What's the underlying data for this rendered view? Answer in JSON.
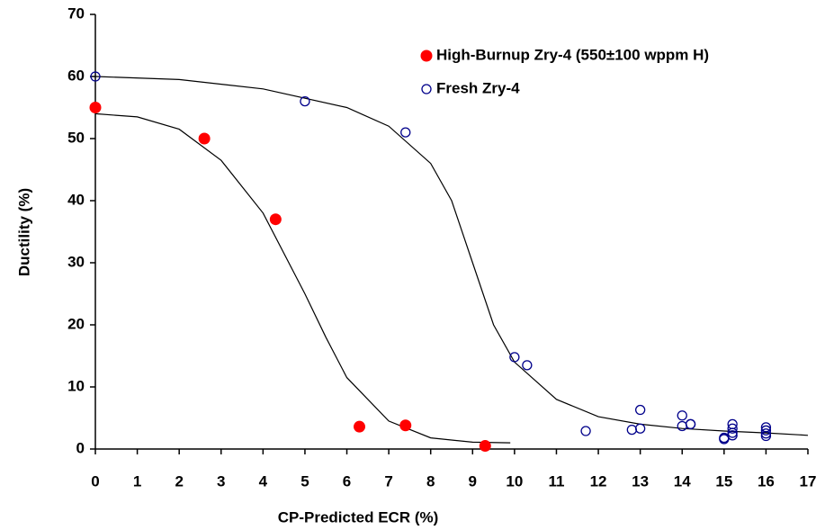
{
  "chart_data": {
    "type": "scatter",
    "x_label": "CP-Predicted ECR (%)",
    "y_label": "Ductility (%)",
    "xlim": [
      0,
      17
    ],
    "xticks": [
      0,
      1,
      2,
      3,
      4,
      5,
      6,
      7,
      8,
      9,
      10,
      11,
      12,
      13,
      14,
      15,
      16,
      17
    ],
    "ylim": [
      0,
      70
    ],
    "yticks": [
      0,
      10,
      20,
      30,
      40,
      50,
      60,
      70
    ],
    "legend": "upper right",
    "series": [
      {
        "name": "High-Burnup Zry-4 (550±100 wppm H)",
        "color": "#ff0000",
        "marker": "filled",
        "x": [
          0,
          2.6,
          4.3,
          6.3,
          7.4,
          9.3
        ],
        "values": [
          55,
          50,
          37,
          3.6,
          3.8,
          0.5
        ]
      },
      {
        "name": "Fresh Zry-4",
        "color": "#00008b",
        "marker": "open",
        "x": [
          0,
          5,
          7.4,
          10,
          10.3,
          11.7,
          12.8,
          13,
          13,
          14,
          14,
          14.2,
          14.2,
          15,
          15,
          15.2,
          15.2,
          15.2,
          15.2,
          16,
          16,
          16,
          16
        ],
        "values": [
          60,
          56,
          51,
          14.8,
          13.5,
          2.9,
          3.1,
          3.3,
          6.3,
          5.4,
          3.7,
          4,
          4,
          1.6,
          1.8,
          4,
          3.3,
          2.6,
          2.2,
          3.5,
          3,
          2.5,
          2.1
        ]
      }
    ],
    "fit_color": "#000000",
    "fits": [
      {
        "x": [
          0,
          1,
          2,
          3,
          4,
          5,
          5.5,
          6,
          7,
          8,
          9,
          9.9
        ],
        "values": [
          54,
          53.5,
          51.5,
          46.5,
          38,
          25,
          18,
          11.5,
          4.5,
          1.8,
          1.1,
          1.0
        ]
      },
      {
        "x": [
          0,
          2,
          4,
          6,
          7,
          8,
          8.5,
          9,
          9.5,
          10,
          11,
          12,
          13,
          14,
          15,
          16,
          17
        ],
        "values": [
          60,
          59.5,
          58,
          55,
          52,
          46,
          40,
          30,
          20,
          14,
          8,
          5.2,
          4,
          3.3,
          2.9,
          2.6,
          2.2
        ]
      }
    ]
  }
}
